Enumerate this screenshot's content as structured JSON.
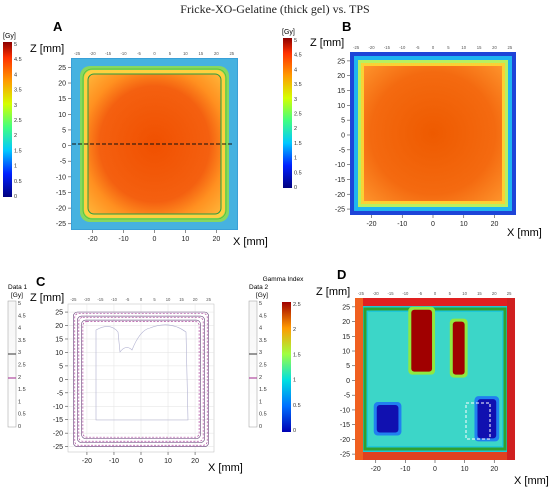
{
  "figure": {
    "title": "Fricke-XO-Gelatine (thick gel) vs. TPS",
    "panels": {
      "A": {
        "label": "A",
        "zlabel": "Z [mm]",
        "xlabel": "X [mm]",
        "cb_label": "[Gy]"
      },
      "B": {
        "label": "B",
        "zlabel": "Z [mm]",
        "xlabel": "X [mm]",
        "cb_label": "[Gy]"
      },
      "C": {
        "label": "C",
        "zlabel": "Z [mm]",
        "xlabel": "X [mm]",
        "left_cb_title": "Data 1",
        "left_cb_unit": "[Gy]",
        "right_cb_title": "Data 2",
        "right_cb_unit": "[Gy]"
      },
      "D": {
        "label": "D",
        "zlabel": "Z [mm]",
        "xlabel": "X [mm]",
        "cb_title": "Gamma Index"
      }
    }
  },
  "chart_data": [
    {
      "id": "A",
      "type": "heatmap",
      "xlabel": "X [mm]",
      "ylabel": "Z [mm]",
      "xlim": [
        -27,
        27
      ],
      "ylim": [
        -27,
        28
      ],
      "x_ticks": [
        -20,
        -10,
        0,
        10,
        20
      ],
      "y_ticks": [
        25,
        20,
        15,
        10,
        5,
        0,
        -5,
        -10,
        -15,
        -20,
        -25
      ],
      "top_ticks": [
        -25,
        -20,
        -15,
        -10,
        -5,
        0,
        5,
        10,
        15,
        20,
        25
      ],
      "colorbar": {
        "unit": "[Gy]",
        "range": [
          0,
          5
        ],
        "ticks": [
          "5",
          "4.5",
          "4",
          "3.5",
          "3",
          "2.5",
          "2",
          "1.5",
          "1",
          "0.5",
          "0"
        ]
      },
      "field_halfwidth_mm": 22,
      "plateau_dose_gy": 4.2,
      "profile_line_z_mm": 1.5
    },
    {
      "id": "B",
      "type": "heatmap",
      "xlabel": "X [mm]",
      "ylabel": "Z [mm]",
      "xlim": [
        -27,
        27
      ],
      "ylim": [
        -27,
        28
      ],
      "x_ticks": [
        -20,
        -10,
        0,
        10,
        20
      ],
      "y_ticks": [
        25,
        20,
        15,
        10,
        5,
        0,
        -5,
        -10,
        -15,
        -20,
        -25
      ],
      "top_ticks": [
        -25,
        -20,
        -15,
        -10,
        -5,
        0,
        5,
        10,
        15,
        20,
        25
      ],
      "colorbar": {
        "unit": "[Gy]",
        "range": [
          0,
          5
        ],
        "ticks": [
          "5",
          "4.5",
          "4",
          "3.5",
          "3",
          "2.5",
          "2",
          "1.5",
          "1",
          "0.5",
          "0"
        ]
      },
      "field_halfwidth_mm": 23,
      "plateau_dose_gy": 4.3
    },
    {
      "id": "C",
      "type": "line",
      "xlabel": "X [mm]",
      "ylabel": "Z [mm]",
      "xlim": [
        -27,
        27
      ],
      "ylim": [
        -27,
        28
      ],
      "x_ticks": [
        -20,
        -10,
        0,
        10,
        20
      ],
      "y_ticks": [
        25,
        20,
        15,
        10,
        5,
        0,
        -5,
        -10,
        -15,
        -20,
        -25
      ],
      "top_ticks": [
        -25,
        -20,
        -15,
        -10,
        -5,
        0,
        5,
        10,
        15,
        20,
        25
      ],
      "left_colorbar": {
        "title": "Data 1",
        "unit": "[Gy]",
        "ticks": [
          "5",
          "4.5",
          "4",
          "3.5",
          "3",
          "2.5",
          "2",
          "1.5",
          "1",
          "0.5",
          "0"
        ]
      },
      "right_colorbar": {
        "title": "Data 2",
        "unit": "[Gy]",
        "ticks": [
          "5",
          "4.5",
          "4",
          "3.5",
          "3",
          "2.5",
          "2",
          "1.5",
          "1",
          "0.5",
          "0"
        ]
      },
      "series": [
        {
          "contour_halfwidths_mm": [
            25,
            23.5,
            22
          ]
        },
        {
          "contour_halfwidths_mm": [
            24.5,
            23,
            21.5
          ]
        }
      ]
    },
    {
      "id": "D",
      "type": "heatmap",
      "xlabel": "X [mm]",
      "ylabel": "Z [mm]",
      "xlim": [
        -27,
        27
      ],
      "ylim": [
        -27,
        28
      ],
      "x_ticks": [
        -20,
        -10,
        0,
        10,
        20
      ],
      "y_ticks": [
        25,
        20,
        15,
        10,
        5,
        0,
        -5,
        -10,
        -15,
        -20,
        -25
      ],
      "top_ticks": [
        -25,
        -20,
        -15,
        -10,
        -5,
        0,
        5,
        10,
        15,
        20,
        25
      ],
      "colorbar": {
        "title": "Gamma Index",
        "range": [
          0,
          2.5
        ],
        "ticks": [
          "2.5",
          "2",
          "1.5",
          "1",
          "0.5",
          "0"
        ]
      },
      "hot_regions": [
        {
          "x0": -8,
          "x1": -1,
          "z0": 3,
          "z1": 24
        },
        {
          "x0": 6,
          "x1": 10,
          "z0": 2,
          "z1": 20
        }
      ],
      "cold_regions": [
        {
          "x0": -20,
          "x1": -12,
          "z0": -18,
          "z1": -8
        },
        {
          "x0": 14,
          "x1": 21,
          "z0": -20,
          "z1": -6
        }
      ]
    }
  ]
}
